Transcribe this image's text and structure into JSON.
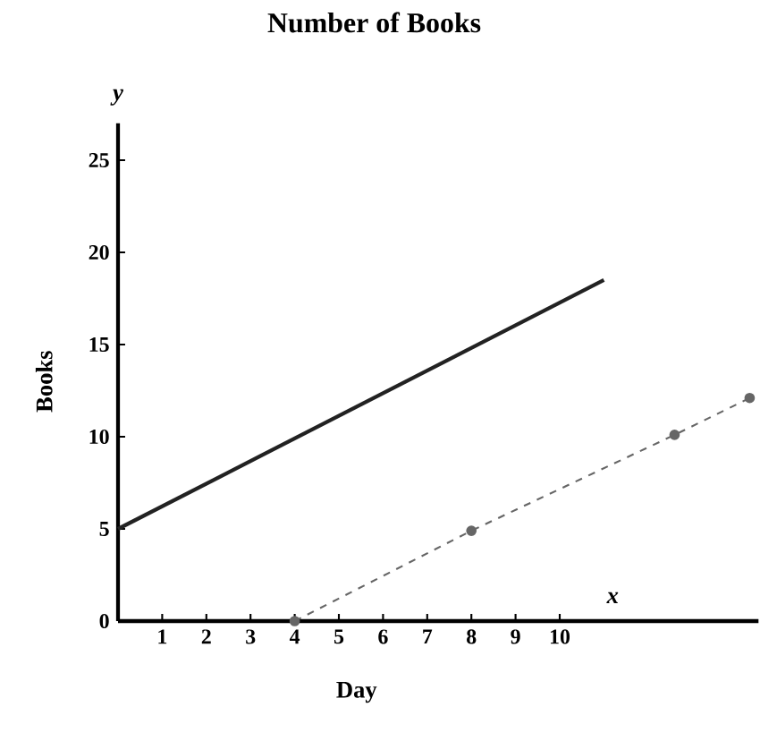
{
  "chart_data": {
    "type": "line",
    "title": "Number of Books",
    "xlabel": "Day",
    "ylabel": "Books",
    "annotations": [
      "y",
      "x"
    ],
    "xlim": [
      0,
      14.5
    ],
    "ylim": [
      0,
      27
    ],
    "xticks": [
      {
        "value": 0,
        "label": null
      },
      1,
      2,
      3,
      4,
      5,
      6,
      7,
      8,
      9,
      10
    ],
    "yticks": [
      0,
      5,
      10,
      15,
      20,
      25
    ],
    "grid": false,
    "series": [
      {
        "color": "#222222",
        "x": [
          0,
          11
        ],
        "values": [
          5,
          18.5
        ],
        "line_style": "solid",
        "marker": "none"
      },
      {
        "color": "#666666",
        "x": [
          4,
          8,
          12.6,
          14.3
        ],
        "values": [
          0,
          4.9,
          10.1,
          12.1
        ],
        "line_style": "dashed",
        "marker": "circle"
      }
    ]
  }
}
